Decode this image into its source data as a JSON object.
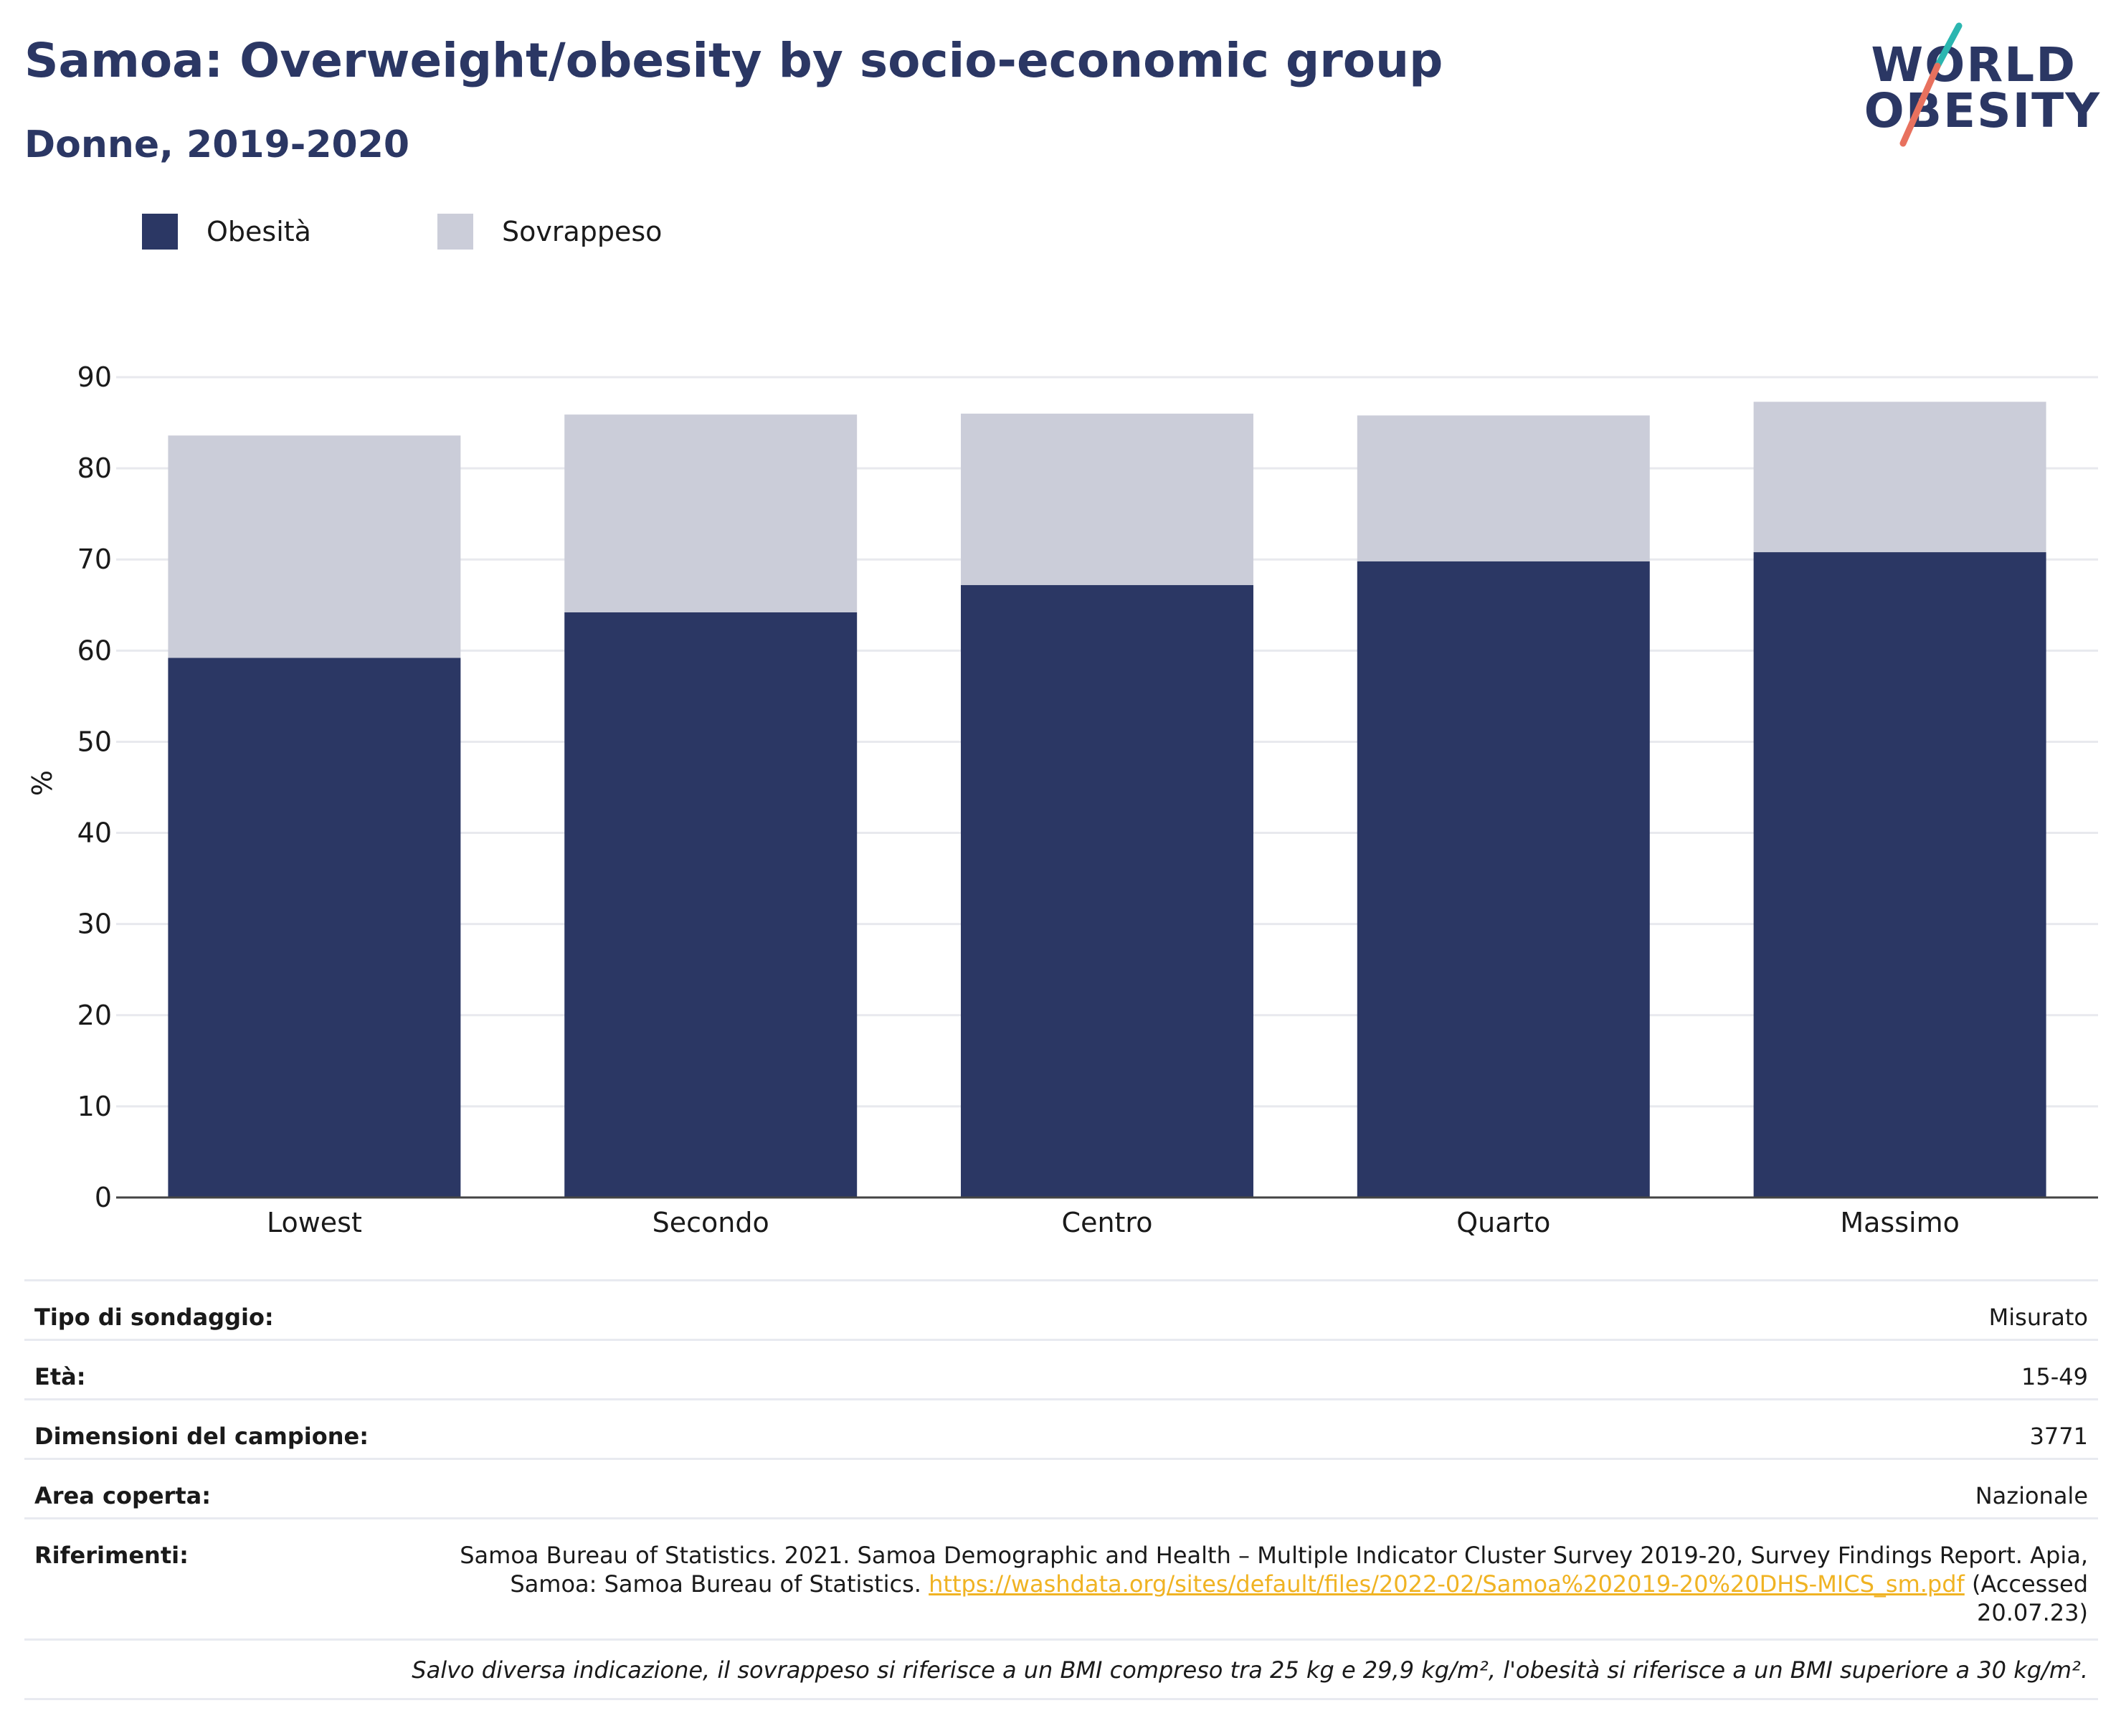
{
  "header": {
    "title": "Samoa: Overweight/obesity by socio-economic group",
    "subtitle": "Donne, 2019-2020",
    "logo_line1": "WORLD",
    "logo_line2": "OBESITY"
  },
  "colors": {
    "obesity": "#2b3764",
    "overweight": "#cbcdd9",
    "title": "#2b3764",
    "logo_slash_top": "#2bb6b0",
    "logo_slash_bottom": "#e8715e",
    "link": "#f0b323"
  },
  "legend": [
    {
      "label": "Obesità",
      "color": "#2b3764"
    },
    {
      "label": "Sovrappeso",
      "color": "#cbcdd9"
    }
  ],
  "chart_data": {
    "type": "bar",
    "stacked": true,
    "categories": [
      "Lowest",
      "Secondo",
      "Centro",
      "Quarto",
      "Massimo"
    ],
    "series": [
      {
        "name": "Obesità",
        "values": [
          59.2,
          64.2,
          67.2,
          69.8,
          70.8
        ]
      },
      {
        "name": "Sovrappeso",
        "values": [
          24.4,
          21.7,
          18.8,
          16.0,
          16.5
        ]
      }
    ],
    "ylabel": "%",
    "ylim": [
      0,
      90
    ],
    "yticks": [
      0,
      10,
      20,
      30,
      40,
      50,
      60,
      70,
      80,
      90
    ],
    "grid": true,
    "legend_position": "top-left"
  },
  "info": {
    "survey_type_label": "Tipo di sondaggio:",
    "survey_type_value": "Misurato",
    "age_label": "Età:",
    "age_value": "15-49",
    "sample_label": "Dimensioni del campione:",
    "sample_value": "3771",
    "area_label": "Area coperta:",
    "area_value": "Nazionale",
    "refs_label": "Riferimenti:",
    "refs_text": "Samoa Bureau of Statistics. 2021. Samoa Demographic and Health – Multiple Indicator Cluster Survey 2019-20, Survey Findings Report. Apia, Samoa: Samoa Bureau of Statistics.",
    "refs_link": "https://washdata.org/sites/default/files/2022-02/Samoa%202019-20%20DHS-MICS_sm.pdf",
    "refs_accessed": "(Accessed 20.07.23)",
    "note": "Salvo diversa indicazione, il sovrappeso si riferisce a un BMI compreso tra 25 kg e 29,9 kg/m², l'obesità si riferisce a un BMI superiore a 30 kg/m²."
  }
}
